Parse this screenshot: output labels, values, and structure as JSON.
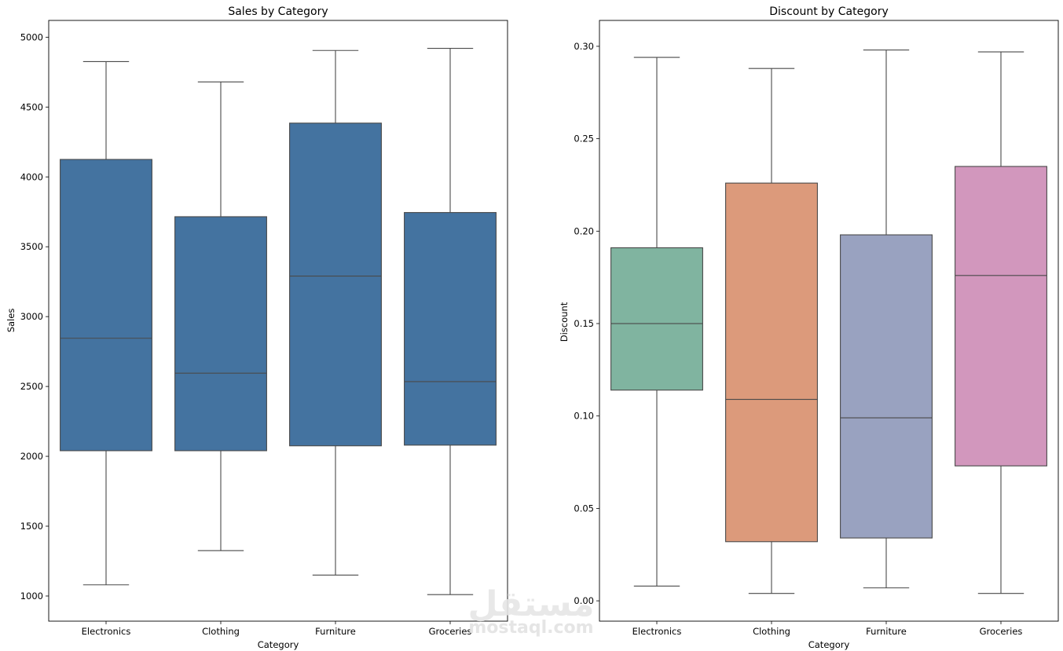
{
  "chart_data": [
    {
      "type": "boxplot",
      "title": "Sales by Category",
      "xlabel": "Category",
      "ylabel": "Sales",
      "categories": [
        "Electronics",
        "Clothing",
        "Furniture",
        "Groceries"
      ],
      "ylim": [
        820,
        5120
      ],
      "yticks": [
        1000,
        1500,
        2000,
        2500,
        3000,
        3500,
        4000,
        4500,
        5000
      ],
      "ytick_labels": [
        "1000",
        "1500",
        "2000",
        "2500",
        "3000",
        "3500",
        "4000",
        "4500",
        "5000"
      ],
      "colors": [
        "#4473a0",
        "#4473a0",
        "#4473a0",
        "#4473a0"
      ],
      "boxes": [
        {
          "whislo": 1080,
          "q1": 2040,
          "med": 2845,
          "q3": 4125,
          "whishi": 4825
        },
        {
          "whislo": 1325,
          "q1": 2040,
          "med": 2595,
          "q3": 3715,
          "whishi": 4680
        },
        {
          "whislo": 1150,
          "q1": 2075,
          "med": 3290,
          "q3": 4385,
          "whishi": 4905
        },
        {
          "whislo": 1010,
          "q1": 2080,
          "med": 2535,
          "q3": 3745,
          "whishi": 4920
        }
      ]
    },
    {
      "type": "boxplot",
      "title": "Discount by Category",
      "xlabel": "Category",
      "ylabel": "Discount",
      "categories": [
        "Electronics",
        "Clothing",
        "Furniture",
        "Groceries"
      ],
      "ylim": [
        -0.011,
        0.314
      ],
      "yticks": [
        0.0,
        0.05,
        0.1,
        0.15,
        0.2,
        0.25,
        0.3
      ],
      "ytick_labels": [
        "0.00",
        "0.05",
        "0.10",
        "0.15",
        "0.20",
        "0.25",
        "0.30"
      ],
      "colors": [
        "#80b4a0",
        "#dc9a7b",
        "#99a2c0",
        "#d297bd"
      ],
      "boxes": [
        {
          "whislo": 0.008,
          "q1": 0.114,
          "med": 0.15,
          "q3": 0.191,
          "whishi": 0.294
        },
        {
          "whislo": 0.004,
          "q1": 0.032,
          "med": 0.109,
          "q3": 0.226,
          "whishi": 0.288
        },
        {
          "whislo": 0.007,
          "q1": 0.034,
          "med": 0.099,
          "q3": 0.198,
          "whishi": 0.298
        },
        {
          "whislo": 0.004,
          "q1": 0.073,
          "med": 0.176,
          "q3": 0.235,
          "whishi": 0.297
        }
      ]
    }
  ],
  "watermark": {
    "arabic": "مستقل",
    "latin": "mostaql.com"
  }
}
